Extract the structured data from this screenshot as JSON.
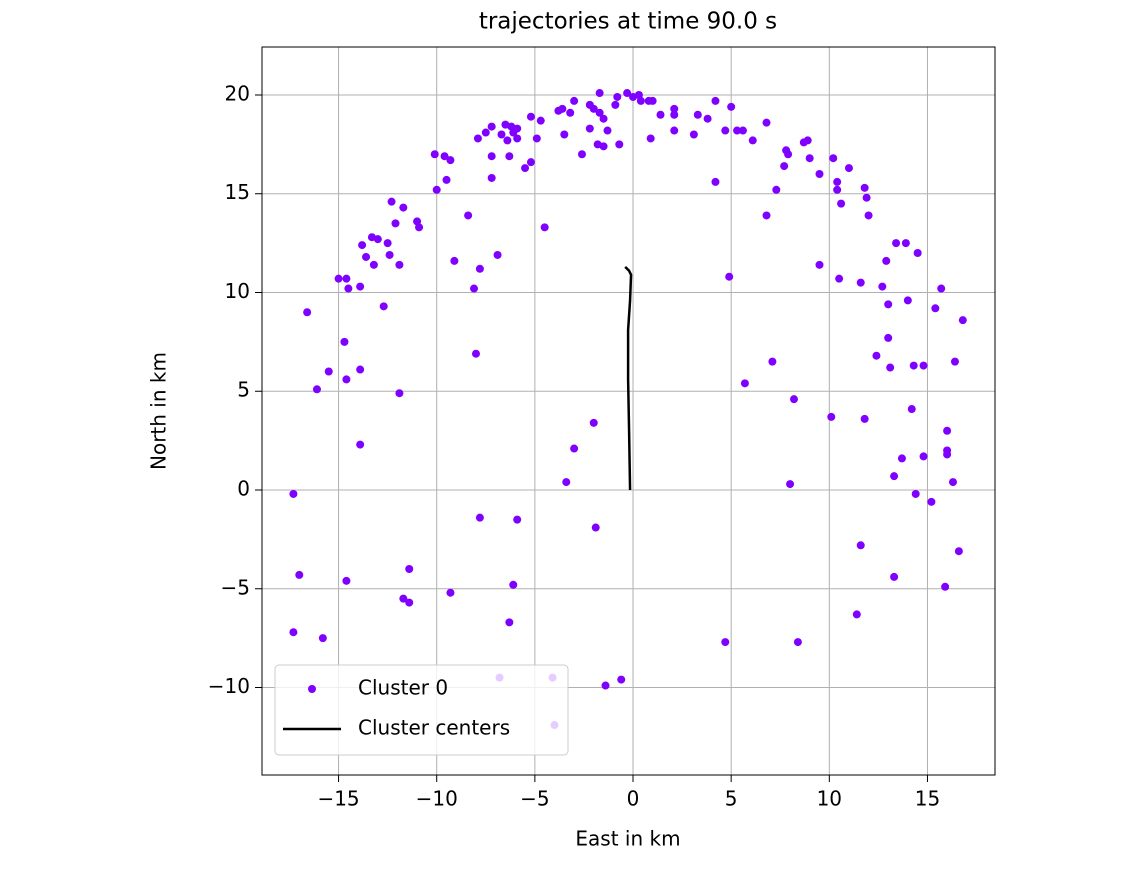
{
  "chart_data": {
    "type": "scatter",
    "title": "trajectories at time 90.0 s",
    "xlabel": "East in km",
    "ylabel": "North in km",
    "xlim": [
      -18.9,
      18.44
    ],
    "ylim": [
      -14.43,
      22.43
    ],
    "xticks": [
      {
        "value": -15,
        "label": "−15"
      },
      {
        "value": -10,
        "label": "−10"
      },
      {
        "value": -5,
        "label": "−5"
      },
      0,
      5,
      10,
      15
    ],
    "yticks": [
      {
        "value": -10,
        "label": "−10"
      },
      {
        "value": -5,
        "label": "−5"
      },
      0,
      5,
      10,
      15,
      20
    ],
    "grid": true,
    "legend": "lower left",
    "series": [
      {
        "name": "Cluster 0",
        "type": "scatter",
        "color": "#8000ff",
        "x": [
          -17.3,
          -16.6,
          -16.1,
          -15.5,
          -15.0,
          -14.6,
          -14.5,
          -14.7,
          -14.6,
          -13.9,
          -13.9,
          -13.8,
          -13.6,
          -13.3,
          -13.2,
          -13.0,
          -12.7,
          -12.5,
          -12.4,
          -12.3,
          -12.1,
          -11.9,
          -11.7,
          -11.9,
          -13.9,
          -17.0,
          -17.3,
          -15.8,
          -14.6,
          -11.4,
          -11.7,
          -11.4,
          -11.0,
          -10.9,
          -10.1,
          -10.0,
          -9.6,
          -9.5,
          -9.3,
          -9.1,
          -9.3,
          -8.4,
          -8.1,
          -8.0,
          -7.8,
          -7.8,
          -7.9,
          -7.5,
          -7.2,
          -7.2,
          -7.2,
          -6.9,
          -6.8,
          -6.7,
          -6.5,
          -6.4,
          -6.2,
          -6.1,
          -6.3,
          -5.9,
          -5.9,
          -6.3,
          -6.1,
          -5.9,
          -5.5,
          -5.2,
          -5.2,
          -4.9,
          -4.7,
          -4.5,
          -4.1,
          -4.0,
          -3.8,
          -3.6,
          -3.5,
          -3.4,
          -3.2,
          -3.0,
          -3.0,
          -2.6,
          -2.2,
          -2.2,
          -2.0,
          -2.0,
          -1.9,
          -1.8,
          -1.7,
          -1.7,
          -1.5,
          -1.5,
          -1.3,
          -1.4,
          -0.9,
          -0.8,
          -0.7,
          -0.6,
          -0.3,
          0,
          0.3,
          0.4,
          0.8,
          0.9,
          1.0,
          1.4,
          2.1,
          2.1,
          2.1,
          3.1,
          3.3,
          3.8,
          4.2,
          4.2,
          4.7,
          4.7,
          5.0,
          4.9,
          5.3,
          5.6,
          5.7,
          6.1,
          6.8,
          6.8,
          7.1,
          7.3,
          7.7,
          7.8,
          7.9,
          8.0,
          8.2,
          8.4,
          8.7,
          8.9,
          9.0,
          9.5,
          9.5,
          10.1,
          10.2,
          10.4,
          10.4,
          10.5,
          10.6,
          11.0,
          11.4,
          11.6,
          11.6,
          11.8,
          11.8,
          11.9,
          12.0,
          12.4,
          12.7,
          12.9,
          13.0,
          13.0,
          13.1,
          13.3,
          13.3,
          13.4,
          13.7,
          13.9,
          14.0,
          14.2,
          14.3,
          14.4,
          14.5,
          14.8,
          14.8,
          15.2,
          15.4,
          15.7,
          15.9,
          16.0,
          16.0,
          16.0,
          16.3,
          16.4,
          16.6,
          16.8
        ],
        "y": [
          -0.2,
          9.0,
          5.1,
          6.0,
          10.7,
          10.7,
          10.2,
          7.5,
          5.6,
          6.1,
          10.3,
          12.4,
          11.8,
          12.8,
          11.4,
          12.7,
          9.3,
          12.5,
          11.9,
          14.6,
          13.5,
          11.4,
          14.3,
          4.9,
          2.3,
          -4.3,
          -7.2,
          -7.5,
          -4.6,
          -4.0,
          -5.5,
          -5.7,
          13.6,
          13.3,
          17.0,
          15.2,
          16.9,
          15.7,
          16.7,
          11.6,
          -5.2,
          13.9,
          10.2,
          6.9,
          -1.4,
          11.2,
          17.8,
          18.1,
          18.4,
          16.9,
          15.8,
          11.9,
          -9.5,
          18.0,
          18.5,
          17.7,
          18.4,
          18.1,
          16.9,
          18.3,
          17.8,
          -6.7,
          -4.8,
          -1.5,
          16.3,
          16.6,
          18.9,
          17.8,
          18.7,
          13.3,
          -9.5,
          -11.9,
          19.2,
          19.3,
          18.0,
          0.4,
          19.1,
          19.7,
          2.1,
          17.0,
          19.5,
          18.3,
          19.3,
          3.4,
          -1.9,
          17.5,
          20.1,
          19.1,
          18.8,
          17.4,
          18.2,
          -9.9,
          19.5,
          19.9,
          17.5,
          -9.6,
          20.1,
          19.9,
          20.0,
          19.7,
          19.7,
          17.8,
          19.7,
          19.0,
          19.3,
          19.0,
          18.2,
          18.0,
          19.0,
          18.8,
          19.7,
          15.6,
          18.2,
          -7.7,
          19.4,
          10.8,
          18.2,
          18.2,
          5.4,
          17.7,
          18.6,
          13.9,
          6.5,
          15.2,
          16.4,
          17.2,
          17.0,
          0.3,
          4.6,
          -7.7,
          17.6,
          17.7,
          16.8,
          16.0,
          11.4,
          3.7,
          16.8,
          15.6,
          15.2,
          10.7,
          14.5,
          16.3,
          -6.3,
          -2.8,
          10.5,
          15.3,
          3.6,
          14.8,
          13.9,
          6.8,
          10.3,
          11.6,
          9.4,
          7.7,
          6.2,
          -4.4,
          0.7,
          12.5,
          1.6,
          12.5,
          9.6,
          4.1,
          6.3,
          -0.2,
          12.0,
          6.3,
          1.7,
          -0.6,
          9.2,
          10.2,
          -4.9,
          2.0,
          3.0,
          1.8,
          0.4,
          6.5,
          -3.1,
          8.6
        ]
      },
      {
        "name": "Cluster centers",
        "type": "line",
        "color": "#000000",
        "x": [
          -0.15,
          -0.2,
          -0.25,
          -0.25,
          -0.15,
          -0.1,
          -0.2,
          -0.4
        ],
        "y": [
          0,
          3.0,
          5.6,
          8.1,
          9.6,
          10.9,
          11.1,
          11.3
        ]
      }
    ]
  }
}
